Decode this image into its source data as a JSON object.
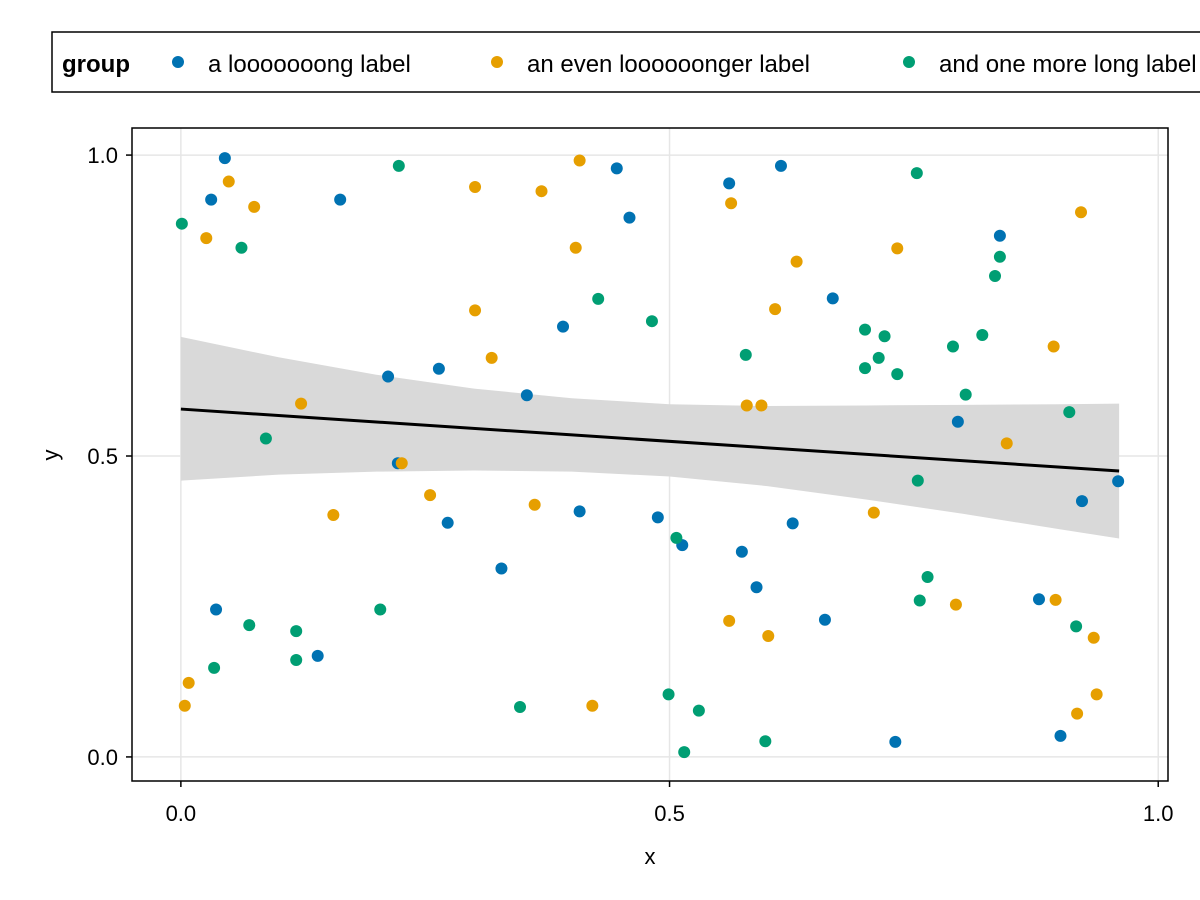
{
  "chart_data": {
    "type": "scatter",
    "xlabel": "x",
    "ylabel": "y",
    "xlim": [
      -0.05,
      1.01
    ],
    "ylim": [
      -0.04,
      1.045
    ],
    "x_ticks": [
      0.0,
      0.5,
      1.0
    ],
    "x_tick_labels": [
      "0.0",
      "0.5",
      "1.0"
    ],
    "y_ticks": [
      0.0,
      0.5,
      1.0
    ],
    "y_tick_labels": [
      "0.0",
      "0.5",
      "1.0"
    ],
    "grid": true,
    "legend": {
      "placement": "top",
      "title": "group",
      "labels": [
        "a looooooong label",
        "an even loooooonger label",
        "and one more long label"
      ]
    },
    "series": [
      {
        "name": "a looooooong label",
        "color": "#0072b2",
        "points": [
          [
            0.045,
            0.995
          ],
          [
            0.031,
            0.926
          ],
          [
            0.163,
            0.926
          ],
          [
            0.446,
            0.978
          ],
          [
            0.459,
            0.896
          ],
          [
            0.561,
            0.953
          ],
          [
            0.614,
            0.982
          ],
          [
            0.838,
            0.866
          ],
          [
            0.667,
            0.762
          ],
          [
            0.391,
            0.715
          ],
          [
            0.264,
            0.645
          ],
          [
            0.212,
            0.632
          ],
          [
            0.354,
            0.601
          ],
          [
            0.795,
            0.557
          ],
          [
            0.959,
            0.458
          ],
          [
            0.922,
            0.425
          ],
          [
            0.222,
            0.488
          ],
          [
            0.273,
            0.389
          ],
          [
            0.408,
            0.408
          ],
          [
            0.488,
            0.398
          ],
          [
            0.513,
            0.352
          ],
          [
            0.574,
            0.341
          ],
          [
            0.626,
            0.388
          ],
          [
            0.328,
            0.313
          ],
          [
            0.589,
            0.282
          ],
          [
            0.036,
            0.245
          ],
          [
            0.659,
            0.228
          ],
          [
            0.878,
            0.262
          ],
          [
            0.14,
            0.168
          ],
          [
            0.731,
            0.025
          ],
          [
            0.9,
            0.035
          ]
        ]
      },
      {
        "name": "an even loooooonger label",
        "color": "#e69f00",
        "points": [
          [
            0.408,
            0.991
          ],
          [
            0.049,
            0.956
          ],
          [
            0.301,
            0.947
          ],
          [
            0.369,
            0.94
          ],
          [
            0.075,
            0.914
          ],
          [
            0.563,
            0.92
          ],
          [
            0.921,
            0.905
          ],
          [
            0.026,
            0.862
          ],
          [
            0.404,
            0.846
          ],
          [
            0.733,
            0.845
          ],
          [
            0.63,
            0.823
          ],
          [
            0.608,
            0.744
          ],
          [
            0.301,
            0.742
          ],
          [
            0.318,
            0.663
          ],
          [
            0.893,
            0.682
          ],
          [
            0.123,
            0.587
          ],
          [
            0.579,
            0.584
          ],
          [
            0.594,
            0.584
          ],
          [
            0.845,
            0.521
          ],
          [
            0.226,
            0.488
          ],
          [
            0.255,
            0.435
          ],
          [
            0.362,
            0.419
          ],
          [
            0.156,
            0.402
          ],
          [
            0.709,
            0.406
          ],
          [
            0.895,
            0.261
          ],
          [
            0.793,
            0.253
          ],
          [
            0.561,
            0.226
          ],
          [
            0.601,
            0.201
          ],
          [
            0.934,
            0.198
          ],
          [
            0.008,
            0.123
          ],
          [
            0.937,
            0.104
          ],
          [
            0.004,
            0.085
          ],
          [
            0.421,
            0.085
          ],
          [
            0.917,
            0.072
          ]
        ]
      },
      {
        "name": "and one more long label",
        "color": "#009e73",
        "points": [
          [
            0.223,
            0.982
          ],
          [
            0.753,
            0.97
          ],
          [
            0.001,
            0.886
          ],
          [
            0.062,
            0.846
          ],
          [
            0.838,
            0.831
          ],
          [
            0.833,
            0.799
          ],
          [
            0.427,
            0.761
          ],
          [
            0.482,
            0.724
          ],
          [
            0.7,
            0.71
          ],
          [
            0.72,
            0.699
          ],
          [
            0.82,
            0.701
          ],
          [
            0.79,
            0.682
          ],
          [
            0.578,
            0.668
          ],
          [
            0.714,
            0.663
          ],
          [
            0.7,
            0.646
          ],
          [
            0.733,
            0.636
          ],
          [
            0.803,
            0.602
          ],
          [
            0.909,
            0.573
          ],
          [
            0.087,
            0.529
          ],
          [
            0.754,
            0.459
          ],
          [
            0.507,
            0.364
          ],
          [
            0.764,
            0.299
          ],
          [
            0.756,
            0.26
          ],
          [
            0.204,
            0.245
          ],
          [
            0.07,
            0.219
          ],
          [
            0.118,
            0.209
          ],
          [
            0.916,
            0.217
          ],
          [
            0.118,
            0.161
          ],
          [
            0.034,
            0.148
          ],
          [
            0.499,
            0.104
          ],
          [
            0.347,
            0.083
          ],
          [
            0.53,
            0.077
          ],
          [
            0.598,
            0.026
          ],
          [
            0.515,
            0.008
          ]
        ]
      }
    ],
    "regression_line": {
      "x": [
        0.0,
        0.96
      ],
      "y": [
        0.578,
        0.475
      ],
      "color": "#000000"
    },
    "confidence_band": {
      "color": "#d9d9d9",
      "x": [
        0.0,
        0.1,
        0.2,
        0.3,
        0.4,
        0.5,
        0.6,
        0.7,
        0.8,
        0.9,
        0.96
      ],
      "upper": [
        0.698,
        0.664,
        0.635,
        0.612,
        0.596,
        0.586,
        0.583,
        0.584,
        0.585,
        0.586,
        0.587
      ],
      "lower": [
        0.459,
        0.469,
        0.474,
        0.476,
        0.474,
        0.466,
        0.45,
        0.428,
        0.404,
        0.378,
        0.363
      ]
    }
  }
}
